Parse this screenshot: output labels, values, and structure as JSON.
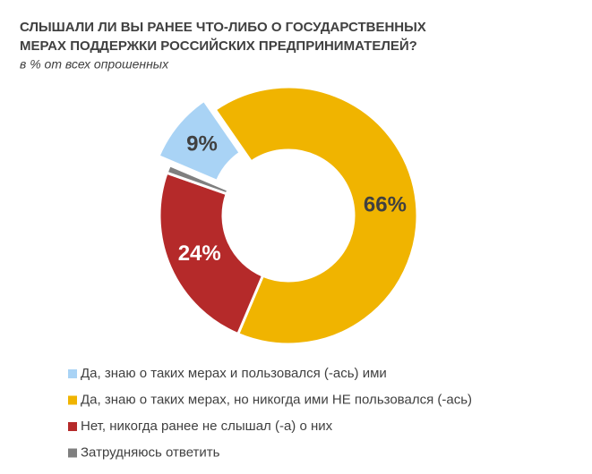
{
  "chart_data": {
    "type": "donut",
    "title": [
      "СЛЫШАЛИ ЛИ ВЫ РАНЕЕ ЧТО-ЛИБО О ГОСУДАРСТВЕННЫХ",
      "МЕРАХ ПОДДЕРЖКИ РОССИЙСКИХ ПРЕДПРИНИМАТЕЛЕЙ?"
    ],
    "subtitle": "в % от всех опрошенных",
    "categories": [
      "Да, знаю о таких мерах и пользовался (-ась) ими",
      "Да, знаю о таких мерах, но никогда ими НЕ пользовался (-ась)",
      "Нет, никогда ранее не слышал (-а) о них",
      "Затрудняюсь ответить"
    ],
    "values": [
      9,
      66,
      24,
      1
    ],
    "value_labels": [
      "9%",
      "66%",
      "24%",
      null
    ],
    "colors": [
      "#a9d3f5",
      "#f0b400",
      "#b52a2a",
      "#7f7f7f"
    ],
    "legend": "bottom"
  }
}
